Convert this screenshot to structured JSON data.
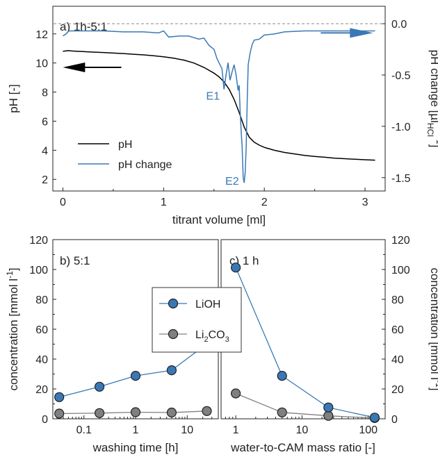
{
  "colors": {
    "ph": "#000000",
    "ph_change": "#3a78b5",
    "lioh": "#3a78b5",
    "li2co3": "#808080",
    "reference": "#888888"
  },
  "chart_data": [
    {
      "type": "line",
      "panel_label": "a) 1h-5:1",
      "xlabel": "titrant volume [ml]",
      "ylabel": "pH [-]",
      "y2label": {
        "main": "pH change [µl",
        "sub": "HCl",
        "sup": "-1",
        "close": "]"
      },
      "xlim": [
        -0.1,
        3.2
      ],
      "ylim": [
        1.2,
        13.9
      ],
      "y2lim": [
        -1.63,
        0.17
      ],
      "xticks": [
        "0",
        "1",
        "2",
        "3"
      ],
      "yticks": [
        "2",
        "4",
        "6",
        "8",
        "10",
        "12"
      ],
      "y2ticks": [
        "-1.5",
        "-1.0",
        "-0.5",
        "0.0"
      ],
      "legend": [
        "pH",
        "pH change"
      ],
      "annotations": [
        "E1",
        "E2"
      ],
      "arrows": [
        {
          "points_to": "left-axis",
          "at_x": 0.4,
          "at_y": 9.7
        },
        {
          "points_to": "right-axis",
          "at_x": 2.7,
          "at_y2": -0.09
        }
      ],
      "reference_line_y2": 0.0,
      "series": [
        {
          "name": "pH",
          "axis": "left",
          "x": [
            0.0,
            0.05,
            0.1,
            0.2,
            0.3,
            0.4,
            0.5,
            0.6,
            0.7,
            0.8,
            0.9,
            1.0,
            1.1,
            1.2,
            1.3,
            1.4,
            1.5,
            1.55,
            1.6,
            1.65,
            1.7,
            1.75,
            1.8,
            1.85,
            1.9,
            1.95,
            2.0,
            2.1,
            2.2,
            2.3,
            2.4,
            2.5,
            2.6,
            2.7,
            2.8,
            2.9,
            3.0,
            3.1
          ],
          "y": [
            10.8,
            10.85,
            10.82,
            10.78,
            10.75,
            10.72,
            10.68,
            10.65,
            10.6,
            10.56,
            10.5,
            10.43,
            10.33,
            10.2,
            10.0,
            9.7,
            9.3,
            9.05,
            8.7,
            8.2,
            7.5,
            6.6,
            5.6,
            4.9,
            4.55,
            4.35,
            4.2,
            4.0,
            3.85,
            3.75,
            3.65,
            3.58,
            3.52,
            3.46,
            3.42,
            3.38,
            3.35,
            3.32
          ]
        },
        {
          "name": "pH change",
          "axis": "right",
          "x": [
            0.0,
            0.03,
            0.06,
            0.1,
            0.2,
            0.4,
            0.6,
            0.8,
            0.95,
            1.0,
            1.05,
            1.15,
            1.25,
            1.35,
            1.4,
            1.45,
            1.5,
            1.53,
            1.56,
            1.58,
            1.6,
            1.62,
            1.64,
            1.66,
            1.68,
            1.7,
            1.72,
            1.74,
            1.75,
            1.76,
            1.77,
            1.78,
            1.79,
            1.8,
            1.81,
            1.82,
            1.83,
            1.84,
            1.86,
            1.88,
            1.9,
            1.95,
            2.0,
            2.1,
            2.2,
            2.4,
            2.6,
            2.8,
            3.0,
            3.1
          ],
          "y": [
            -0.12,
            -0.1,
            -0.07,
            -0.07,
            -0.07,
            -0.07,
            -0.08,
            -0.08,
            -0.09,
            -0.07,
            -0.13,
            -0.12,
            -0.12,
            -0.15,
            -0.14,
            -0.21,
            -0.25,
            -0.34,
            -0.4,
            -0.44,
            -0.64,
            -0.5,
            -0.38,
            -0.55,
            -0.47,
            -0.4,
            -0.5,
            -0.65,
            -0.6,
            -0.85,
            -1.05,
            -1.2,
            -1.5,
            -1.55,
            -1.45,
            -1.2,
            -0.75,
            -0.4,
            -0.28,
            -0.2,
            -0.16,
            -0.15,
            -0.11,
            -0.1,
            -0.08,
            -0.07,
            -0.07,
            -0.07,
            -0.07,
            -0.07
          ]
        }
      ]
    },
    {
      "type": "line",
      "panel_label": "b) 5:1",
      "xlabel": "washing time [h]",
      "ylabel": "concentration [mmol l",
      "ylabel_sup": "-1",
      "ylabel_close": "]",
      "xscale": "log",
      "xlim": [
        0.025,
        40
      ],
      "ylim": [
        0,
        120
      ],
      "xticks": [
        "0.1",
        "1",
        "10"
      ],
      "yticks": [
        "0",
        "20",
        "40",
        "60",
        "80",
        "100",
        "120"
      ],
      "series": [
        {
          "name": "LiOH",
          "x": [
            0.0333,
            0.2,
            1,
            5,
            24
          ],
          "y": [
            14.5,
            21.5,
            28.8,
            32.5,
            50.2
          ]
        },
        {
          "name": "Li2CO3",
          "x": [
            0.0333,
            0.2,
            1,
            5,
            24
          ],
          "y": [
            3.5,
            3.8,
            4.4,
            4.2,
            5.2
          ]
        }
      ]
    },
    {
      "type": "line",
      "panel_label": "c) 1 h",
      "xlabel": "water-to-CAM mass ratio [-]",
      "ylabel": "concentration [mmol l",
      "ylabel_sup": "-1",
      "ylabel_close": "]",
      "xscale": "log",
      "xlim": [
        0.6,
        180
      ],
      "ylim": [
        0,
        120
      ],
      "xticks": [
        "1",
        "10",
        "100"
      ],
      "yticks": [
        "0",
        "20",
        "40",
        "60",
        "80",
        "100",
        "120"
      ],
      "legend": [
        {
          "name": "LiOH",
          "main": "LiOH",
          "sub": ""
        },
        {
          "name": "Li2CO3",
          "main": "Li",
          "sub": "2",
          "rest": "CO",
          "sub2": "3"
        }
      ],
      "series": [
        {
          "name": "LiOH",
          "x": [
            1,
            5,
            25,
            125
          ],
          "y": [
            101.3,
            28.8,
            7.6,
            0.8
          ]
        },
        {
          "name": "Li2CO3",
          "x": [
            1,
            5,
            25,
            125
          ],
          "y": [
            17.0,
            4.3,
            2.0,
            0.5
          ]
        }
      ]
    }
  ]
}
